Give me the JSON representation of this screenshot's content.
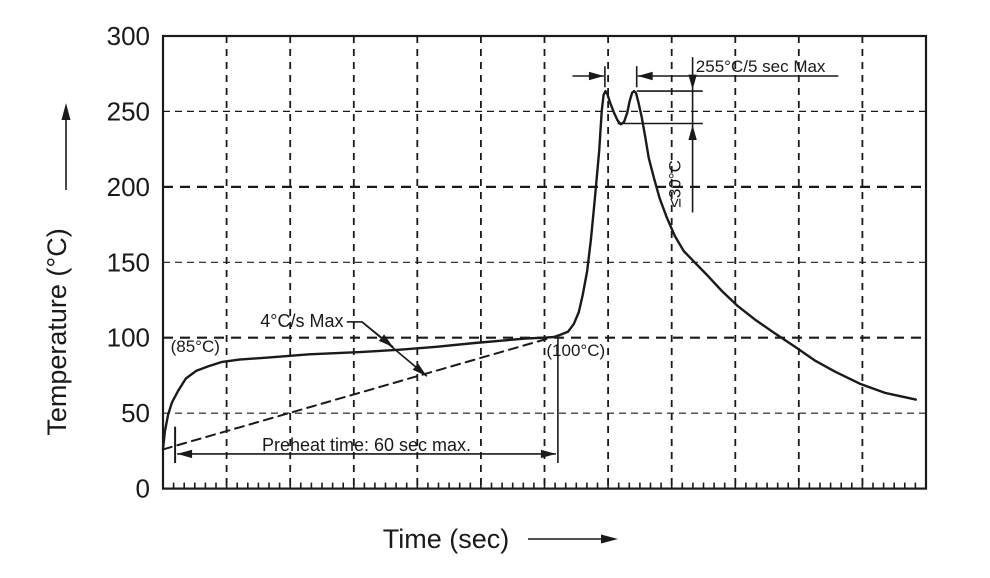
{
  "page": {
    "background": "#ffffff",
    "ink": "#1a1a1a"
  },
  "chart_data": {
    "type": "line",
    "title": "",
    "xlabel": "Time (sec)",
    "ylabel": "Temperature (°C)",
    "xlim": [
      0,
      120
    ],
    "ylim": [
      0,
      300
    ],
    "grid": true,
    "x_gridline_interval_sec": 10,
    "x_minor_tick_interval_sec": 1.6667,
    "y_ticks": [
      0,
      50,
      100,
      150,
      200,
      250,
      300
    ],
    "y_emphasized_gridlines": [
      100,
      200
    ],
    "series": [
      {
        "name": "reflow-profile",
        "style": "solid",
        "points": [
          [
            0,
            26
          ],
          [
            0.3,
            38
          ],
          [
            0.8,
            49
          ],
          [
            1.4,
            57
          ],
          [
            2.4,
            65
          ],
          [
            3.6,
            73
          ],
          [
            5.2,
            78
          ],
          [
            7.1,
            81
          ],
          [
            9.3,
            84
          ],
          [
            12,
            85.5
          ],
          [
            17,
            87
          ],
          [
            23,
            89
          ],
          [
            31,
            90.5
          ],
          [
            37,
            92
          ],
          [
            43,
            94
          ],
          [
            49,
            96.5
          ],
          [
            53,
            98
          ],
          [
            57,
            99.5
          ],
          [
            60,
            100
          ],
          [
            61.5,
            100.5
          ],
          [
            62.5,
            102
          ],
          [
            63.7,
            104
          ],
          [
            64.6,
            109
          ],
          [
            65.4,
            117
          ],
          [
            66,
            128
          ],
          [
            66.7,
            144
          ],
          [
            67.3,
            165
          ],
          [
            67.9,
            191
          ],
          [
            68.6,
            224
          ],
          [
            69,
            250
          ],
          [
            69.3,
            261
          ],
          [
            69.6,
            263.5
          ],
          [
            69.9,
            261.5
          ],
          [
            70.3,
            256
          ],
          [
            70.9,
            249.5
          ],
          [
            71.5,
            244
          ],
          [
            72,
            241.5
          ],
          [
            72.5,
            243
          ],
          [
            73,
            249
          ],
          [
            73.4,
            257
          ],
          [
            73.8,
            262.5
          ],
          [
            74.1,
            263.5
          ],
          [
            74.4,
            262
          ],
          [
            74.8,
            255.5
          ],
          [
            75.3,
            246
          ],
          [
            75.8,
            234
          ],
          [
            76.4,
            219
          ],
          [
            77.2,
            206
          ],
          [
            78.1,
            192.5
          ],
          [
            79.2,
            180
          ],
          [
            80.5,
            167.5
          ],
          [
            81.9,
            157.5
          ],
          [
            83.6,
            150
          ],
          [
            85.7,
            141
          ],
          [
            87.9,
            131
          ],
          [
            90.4,
            121
          ],
          [
            93.1,
            112
          ],
          [
            96.2,
            103
          ],
          [
            99.4,
            94
          ],
          [
            102.5,
            85
          ],
          [
            105.7,
            77.5
          ],
          [
            109.6,
            69.5
          ],
          [
            113.5,
            63.5
          ],
          [
            118.4,
            59
          ]
        ]
      },
      {
        "name": "max-ramp-reference",
        "style": "dashed",
        "points": [
          [
            0,
            26
          ],
          [
            61,
            100
          ]
        ]
      }
    ],
    "annotations": {
      "label_85": {
        "text": "(85°C)",
        "t": 1.2,
        "temp": 90.5
      },
      "label_100": {
        "text": "(100°C)",
        "t": 60.3,
        "temp": 88
      },
      "ramp_rate": {
        "text": "4°C/s Max",
        "text_t": 15.3,
        "text_temp": 107,
        "dash_t1": 28.9,
        "dash_t2": 31.3,
        "dash_temp": 110.5,
        "tips": [
          {
            "t": 36.2,
            "temp": 93.8
          },
          {
            "t": 41.5,
            "temp": 74.5
          }
        ]
      },
      "preheat": {
        "text": "Preheat time: 60 sec max.",
        "t1": 1.9,
        "t2": 62.1,
        "temp": 23,
        "text_t": 32,
        "text_temp": 24.8,
        "left_tick_top_temp": 41,
        "left_tick_bottom_temp": 17,
        "right_line_top_temp": 100,
        "right_line_bottom_temp": 17
      },
      "peak_window": {
        "text": "255°C/5 sec Max",
        "temp": 273.5,
        "t1": 69.5,
        "t2": 74.5,
        "line_start_t": 64.4,
        "line_end_t": 106.2,
        "text_t": 83.8,
        "text_temp": 276,
        "tick_top_temp": 280,
        "tick_bottom_temp": 266
      },
      "delta": {
        "text": "≤30°C",
        "line_t": 83.3,
        "top_temp": 263.5,
        "bottom_temp": 242,
        "top_line_t1": 74.5,
        "bottom_line_t1": 71.5,
        "lines_t2": 84.9,
        "ext_top_temp": 286,
        "ext_bottom_temp": 183,
        "text_t": 81.4,
        "text_temp": 202
      }
    }
  }
}
